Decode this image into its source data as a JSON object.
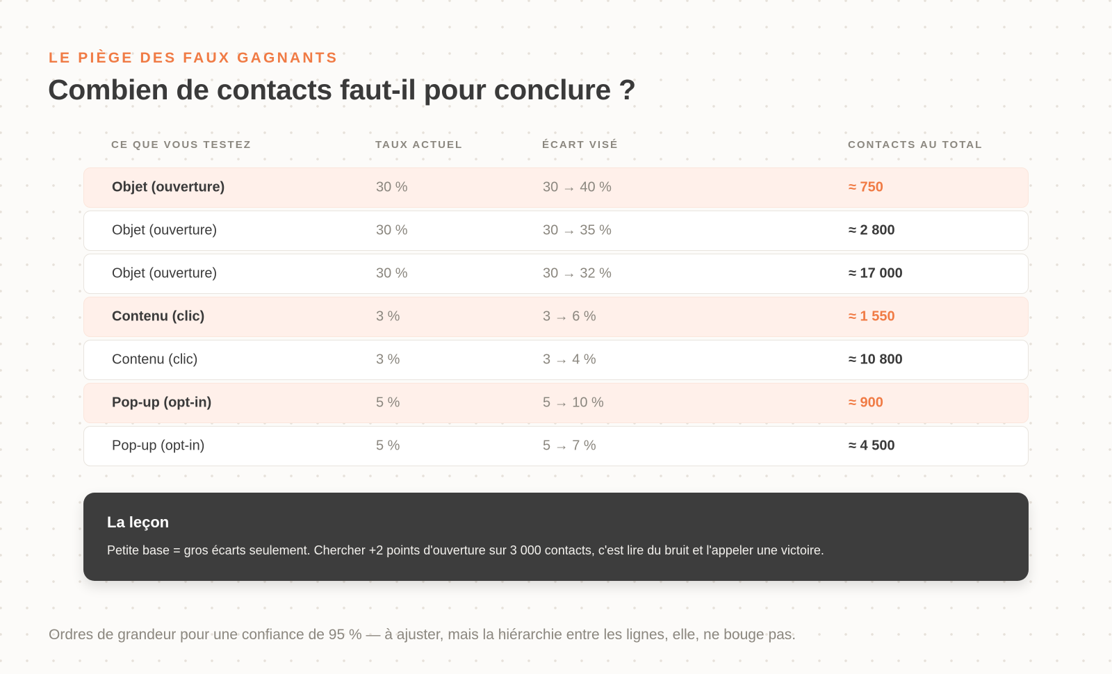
{
  "header": {
    "eyebrow": "LE PIÈGE DES FAUX GAGNANTS",
    "title": "Combien de contacts faut-il pour conclure ?"
  },
  "table": {
    "columns": [
      "CE QUE VOUS TESTEZ",
      "TAUX ACTUEL",
      "ÉCART VISÉ",
      "CONTACTS AU TOTAL"
    ],
    "rows": [
      {
        "test": "Objet (ouverture)",
        "rate": "30 %",
        "gap": "30 → 40 %",
        "contacts": "≈ 750",
        "highlight": true
      },
      {
        "test": "Objet (ouverture)",
        "rate": "30 %",
        "gap": "30 → 35 %",
        "contacts": "≈ 2 800",
        "highlight": false
      },
      {
        "test": "Objet (ouverture)",
        "rate": "30 %",
        "gap": "30 → 32 %",
        "contacts": "≈ 17 000",
        "highlight": false
      },
      {
        "test": "Contenu (clic)",
        "rate": "3 %",
        "gap": "3 → 6 %",
        "contacts": "≈ 1 550",
        "highlight": true
      },
      {
        "test": "Contenu (clic)",
        "rate": "3 %",
        "gap": "3 → 4 %",
        "contacts": "≈ 10 800",
        "highlight": false
      },
      {
        "test": "Pop-up (opt-in)",
        "rate": "5 %",
        "gap": "5 → 10 %",
        "contacts": "≈ 900",
        "highlight": true
      },
      {
        "test": "Pop-up (opt-in)",
        "rate": "5 %",
        "gap": "5 → 7 %",
        "contacts": "≈ 4 500",
        "highlight": false
      }
    ]
  },
  "lesson": {
    "title": "La leçon",
    "body": "Petite base = gros écarts seulement. Chercher +2 points d'ouverture sur 3 000 contacts, c'est lire du bruit et l'appeler une victoire."
  },
  "footnote": "Ordres de grandeur pour une confiance de 95 % — à ajuster, mais la hiérarchie entre les lignes, elle, ne bouge pas.",
  "colors": {
    "accent": "#f07b45",
    "highlight_row": "#fff0ea",
    "dark_panel": "#3d3d3d",
    "muted_text": "#8b877f"
  }
}
